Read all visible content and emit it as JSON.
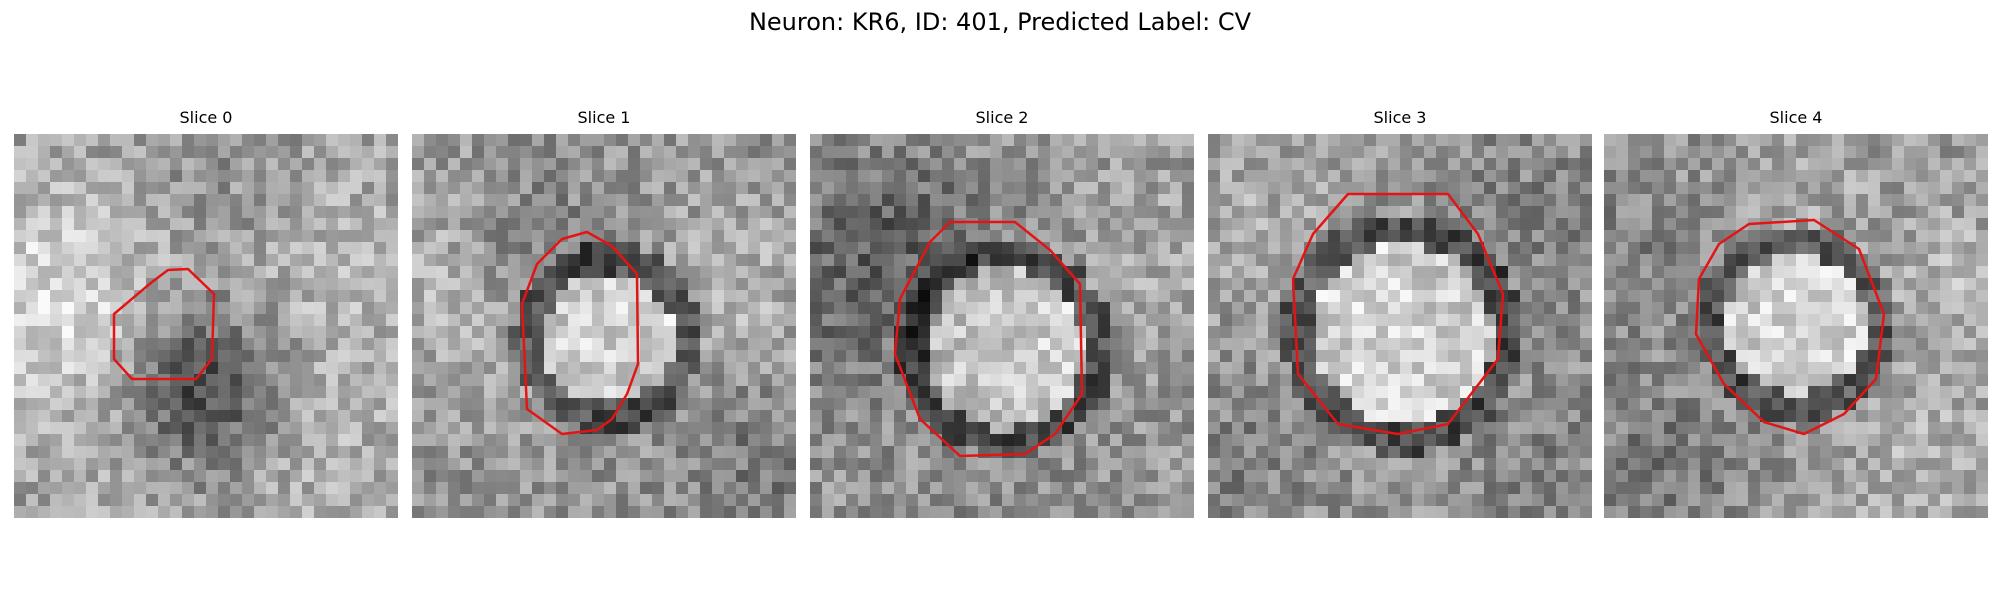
{
  "suptitle": "Neuron: KR6, ID: 401, Predicted Label: CV",
  "slices": [
    {
      "title": "Slice 0",
      "image_description": "grayscale EM patch, small dark round structure outlined in red",
      "seed": 11
    },
    {
      "title": "Slice 1",
      "image_description": "grayscale EM patch, bright round vesicle with dark rim outlined in red",
      "seed": 23
    },
    {
      "title": "Slice 2",
      "image_description": "grayscale EM patch, large round vesicle outlined in red",
      "seed": 37
    },
    {
      "title": "Slice 3",
      "image_description": "grayscale EM patch, large bright vesicle with dark membrane outlined in red",
      "seed": 41
    },
    {
      "title": "Slice 4",
      "image_description": "grayscale EM patch, bright round vesicle with dark rim outlined in red",
      "seed": 53
    }
  ],
  "colors": {
    "contour": "#e41414",
    "background": "#ffffff"
  }
}
